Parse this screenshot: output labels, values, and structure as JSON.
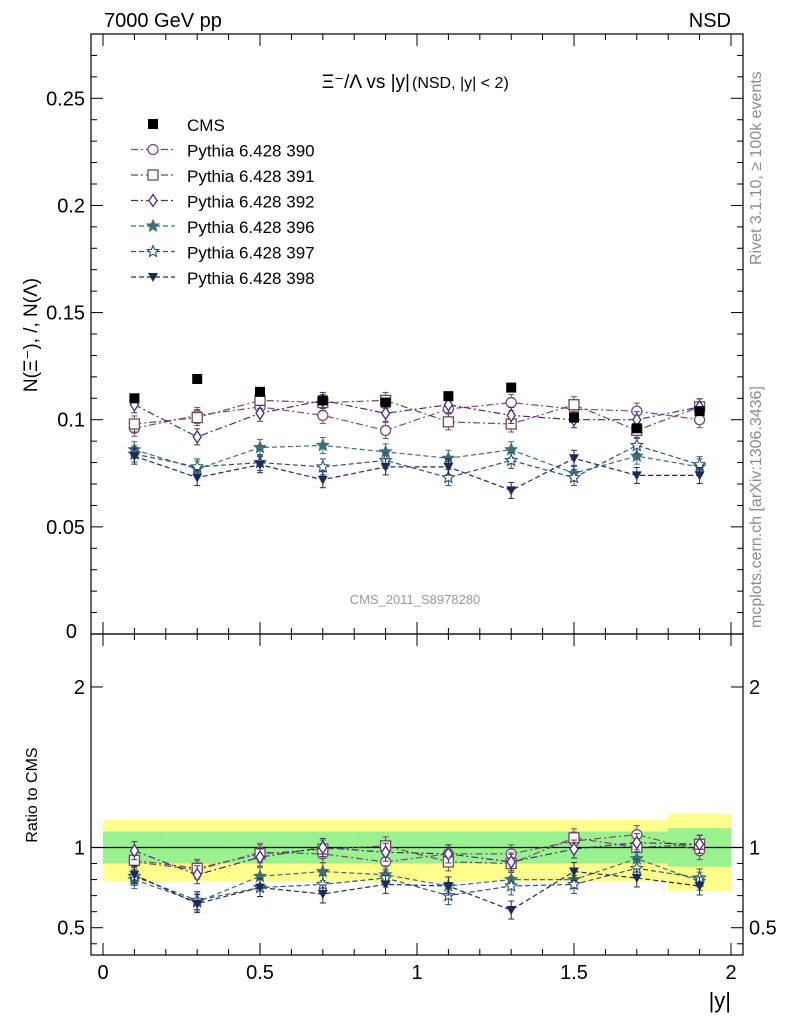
{
  "header": {
    "left": "7000 GeV pp",
    "right": "NSD"
  },
  "side_texts": {
    "rivet": "Rivet 3.1.10, ≥ 100k events",
    "mcplots": "mcplots.cern.ch [arXiv:1306.3436]"
  },
  "watermark": "CMS_2011_S8978280",
  "chart_data": [
    {
      "type": "line",
      "title": {
        "main": "Ξ⁻/Λ vs |y|",
        "sub": "(NSD, |y| < 2)"
      },
      "ylabel": "N(Ξ⁻), /, N(Λ)",
      "xlim": [
        0,
        2
      ],
      "ylim": [
        0,
        0.28
      ],
      "yticks": [
        0.05,
        0.1,
        0.15,
        0.2,
        0.25
      ],
      "yticklabels": [
        "0.05",
        "0.1",
        "0.15",
        "0.2",
        "0.25"
      ],
      "x": [
        0.1,
        0.3,
        0.5,
        0.7,
        0.9,
        1.1,
        1.3,
        1.5,
        1.7,
        1.9
      ],
      "data": {
        "name": "CMS",
        "values": [
          0.11,
          0.119,
          0.113,
          0.109,
          0.108,
          0.111,
          0.115,
          0.101,
          0.096,
          0.104
        ]
      },
      "series": [
        {
          "name": "Pythia 6.428 390",
          "color": "#7a4a78",
          "marker": "circle-open",
          "dash": "dashdot",
          "values": [
            0.096,
            0.102,
            0.106,
            0.102,
            0.095,
            0.105,
            0.108,
            0.105,
            0.104,
            0.1
          ]
        },
        {
          "name": "Pythia 6.428 391",
          "color": "#6e4a5c",
          "marker": "square-open",
          "dash": "dashdot",
          "values": [
            0.098,
            0.101,
            0.109,
            0.108,
            0.109,
            0.099,
            0.098,
            0.107,
            0.095,
            0.106
          ]
        },
        {
          "name": "Pythia 6.428 392",
          "color": "#4a2a7a",
          "marker": "diamond-open",
          "dash": "dashdot",
          "values": [
            0.107,
            0.092,
            0.103,
            0.109,
            0.103,
            0.107,
            0.102,
            0.1,
            0.1,
            0.106
          ]
        },
        {
          "name": "Pythia 6.428 396",
          "color": "#3f6e7a",
          "marker": "star-filled",
          "dash": "dashed",
          "values": [
            0.086,
            0.077,
            0.087,
            0.088,
            0.085,
            0.082,
            0.086,
            0.075,
            0.083,
            0.078
          ]
        },
        {
          "name": "Pythia 6.428 397",
          "color": "#2f5276",
          "marker": "star-open",
          "dash": "dashed",
          "values": [
            0.084,
            0.078,
            0.08,
            0.078,
            0.081,
            0.073,
            0.081,
            0.073,
            0.088,
            0.079
          ]
        },
        {
          "name": "Pythia 6.428 398",
          "color": "#1c2a5a",
          "marker": "tri-down",
          "dash": "dashed",
          "values": [
            0.083,
            0.073,
            0.079,
            0.072,
            0.078,
            0.078,
            0.067,
            0.082,
            0.074,
            0.074
          ]
        }
      ]
    },
    {
      "type": "line",
      "ylabel": "Ratio to CMS",
      "xlabel": "|y|",
      "xlim": [
        0,
        2
      ],
      "ylim": [
        0.33,
        2.33
      ],
      "yticks": [
        0.5,
        1,
        2
      ],
      "yticklabels": [
        "0.5",
        "1",
        "2"
      ],
      "xticks": [
        0,
        0.5,
        1,
        1.5,
        2
      ],
      "xticklabels": [
        "0",
        "0.5",
        "1",
        "1.5",
        "2"
      ],
      "bands": {
        "x_edges": [
          0.0,
          0.2,
          0.4,
          0.6,
          0.8,
          1.0,
          1.2,
          1.4,
          1.6,
          1.8,
          2.0
        ],
        "green_lo": [
          0.9,
          0.9,
          0.9,
          0.9,
          0.9,
          0.9,
          0.9,
          0.9,
          0.9,
          0.88
        ],
        "green_hi": [
          1.1,
          1.1,
          1.1,
          1.1,
          1.1,
          1.1,
          1.1,
          1.1,
          1.1,
          1.12
        ],
        "yellow_lo": [
          0.79,
          0.79,
          0.79,
          0.79,
          0.79,
          0.79,
          0.79,
          0.79,
          0.79,
          0.73
        ],
        "yellow_hi": [
          1.17,
          1.17,
          1.17,
          1.17,
          1.17,
          1.17,
          1.17,
          1.17,
          1.17,
          1.21
        ]
      },
      "series": [
        {
          "name": "Pythia 6.428 390",
          "values": [
            0.91,
            0.86,
            0.97,
            0.96,
            0.91,
            0.96,
            0.96,
            1.04,
            1.08,
            0.98
          ]
        },
        {
          "name": "Pythia 6.428 391",
          "values": [
            0.92,
            0.87,
            0.96,
            0.99,
            1.01,
            0.91,
            0.9,
            1.06,
            1.0,
            1.02
          ]
        },
        {
          "name": "Pythia 6.428 392",
          "values": [
            0.98,
            0.83,
            0.94,
            1.0,
            0.97,
            0.96,
            0.91,
            0.99,
            1.03,
            1.02
          ]
        },
        {
          "name": "Pythia 6.428 396",
          "values": [
            0.8,
            0.66,
            0.82,
            0.85,
            0.83,
            0.76,
            0.8,
            0.8,
            0.93,
            0.79
          ]
        },
        {
          "name": "Pythia 6.428 397",
          "values": [
            0.82,
            0.67,
            0.75,
            0.77,
            0.81,
            0.7,
            0.76,
            0.77,
            0.87,
            0.81
          ]
        },
        {
          "name": "Pythia 6.428 398",
          "values": [
            0.83,
            0.65,
            0.75,
            0.71,
            0.77,
            0.76,
            0.61,
            0.85,
            0.81,
            0.76
          ]
        }
      ]
    }
  ]
}
